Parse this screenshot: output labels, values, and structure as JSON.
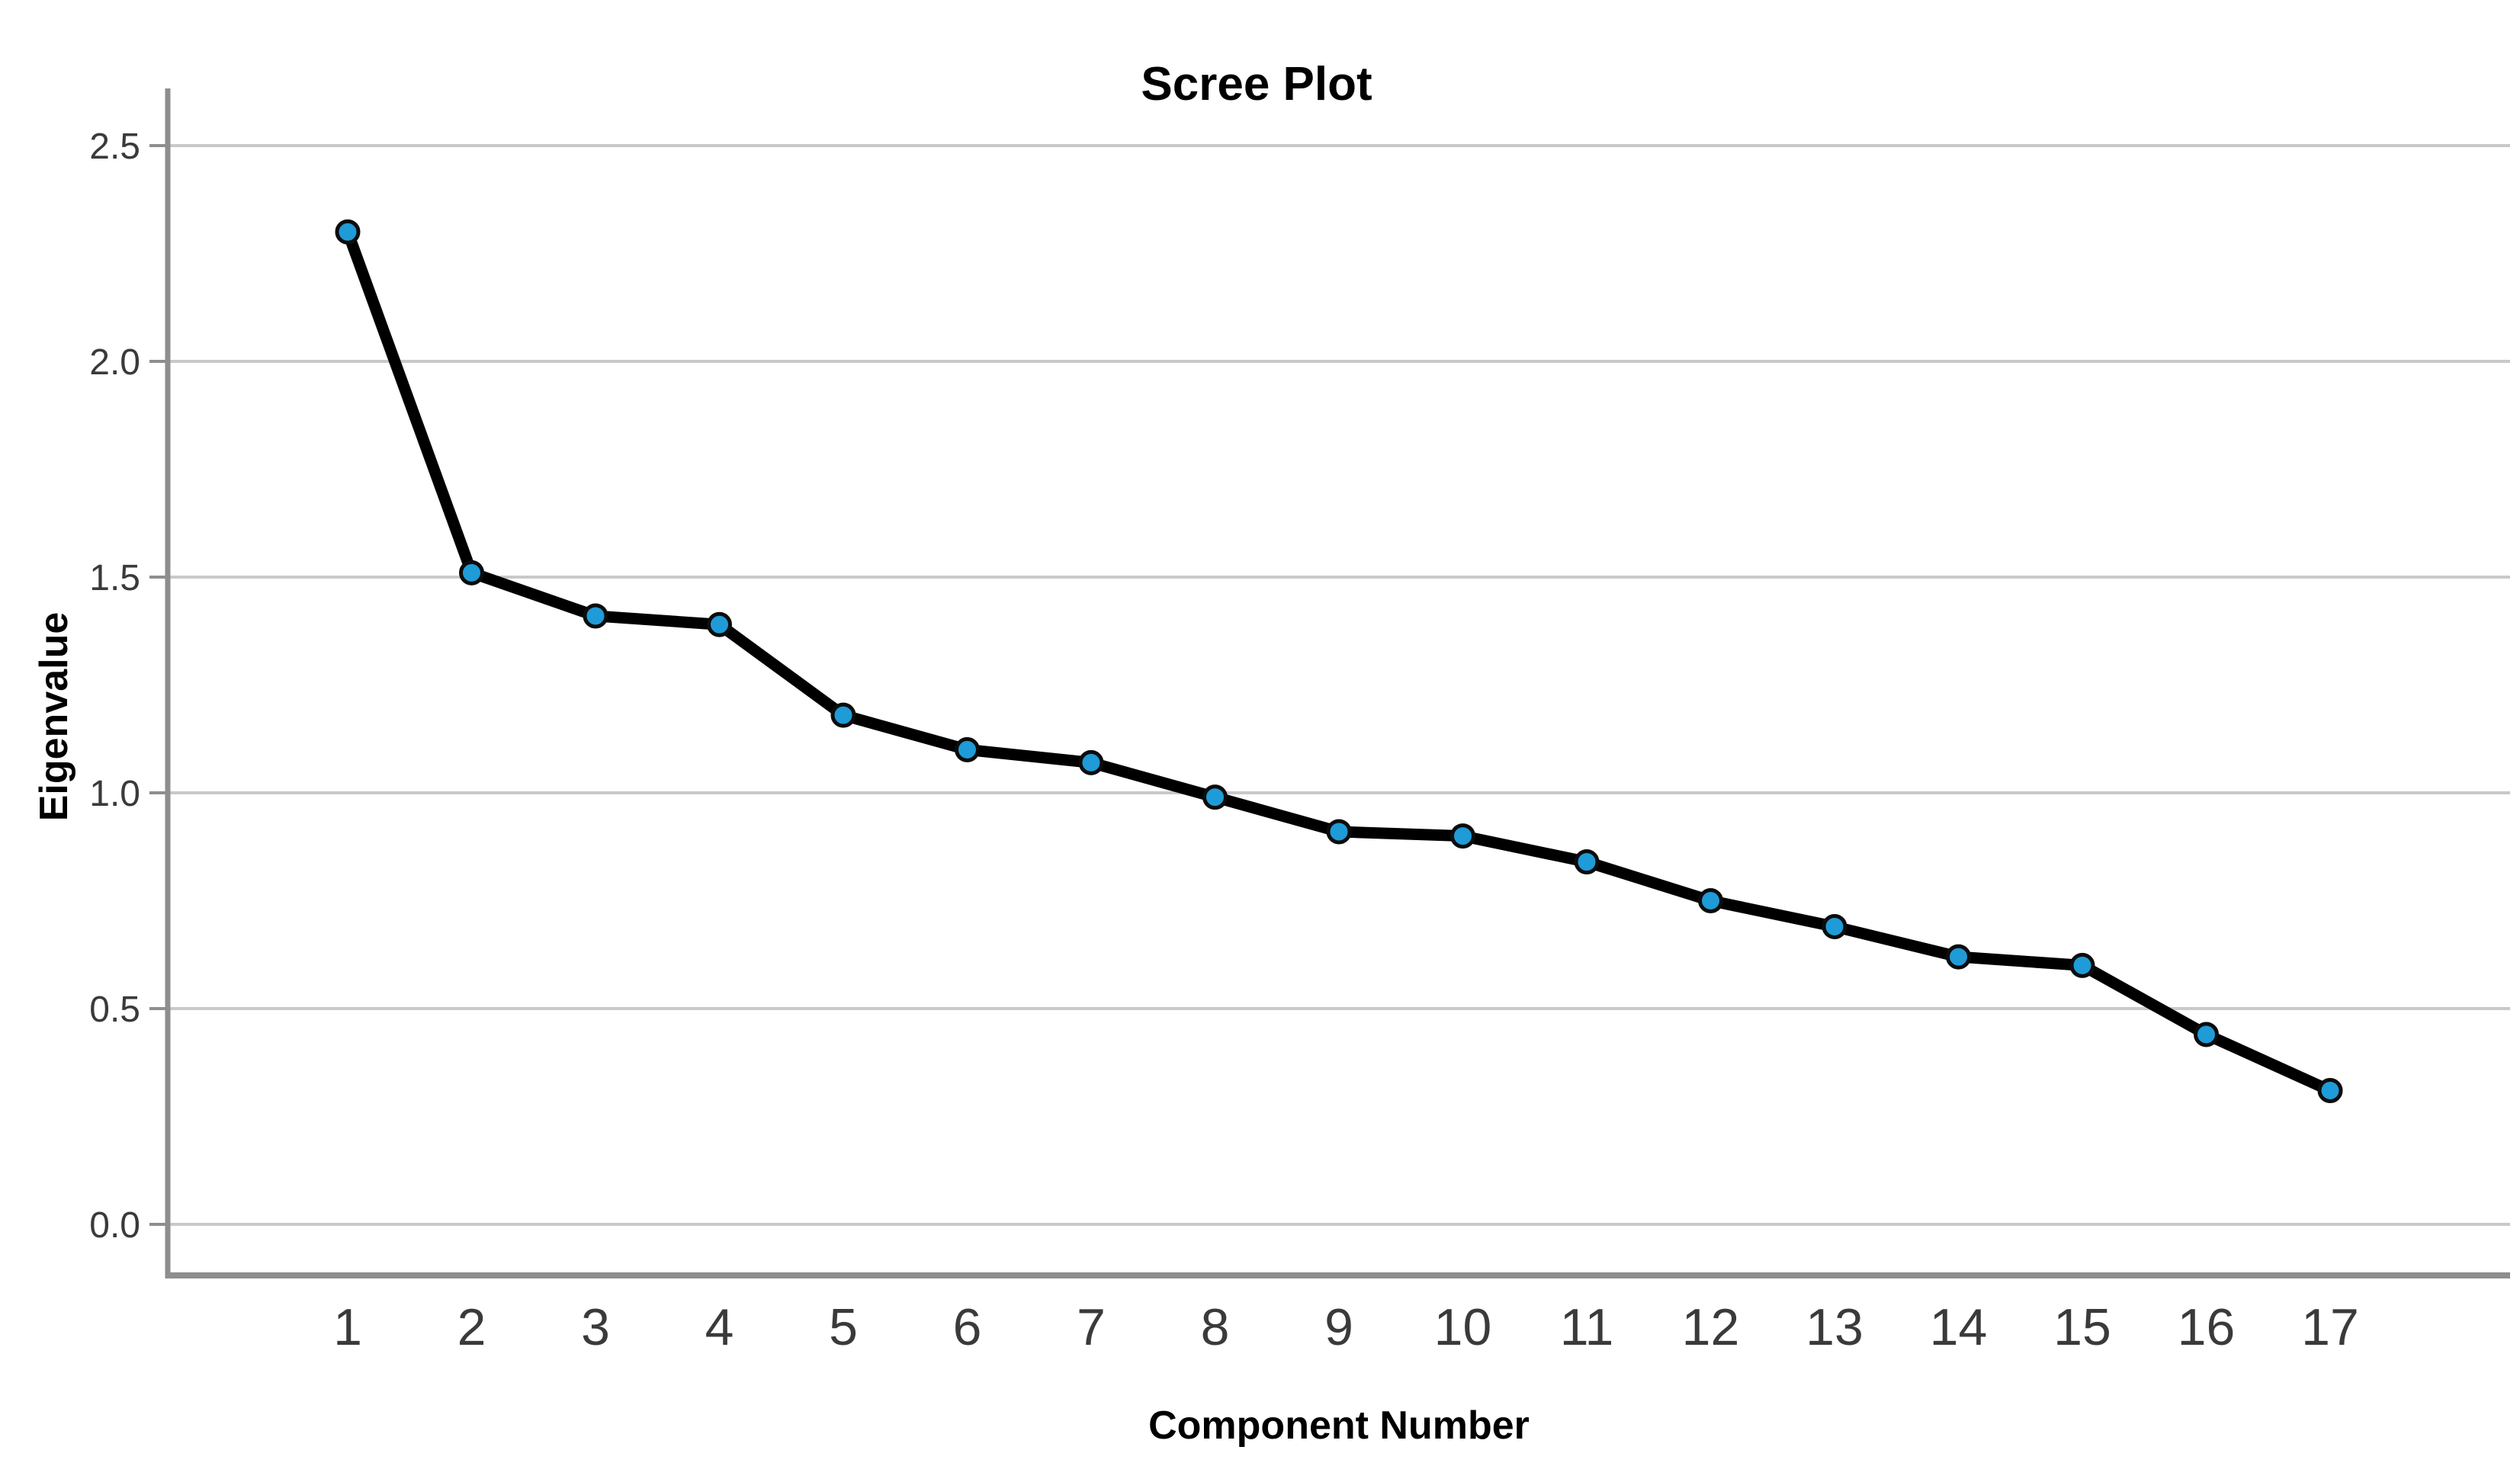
{
  "chart_data": {
    "type": "line",
    "title": "Scree Plot",
    "xlabel": "Component Number",
    "ylabel": "Eigenvalue",
    "categories": [
      "1",
      "2",
      "3",
      "4",
      "5",
      "6",
      "7",
      "8",
      "9",
      "10",
      "11",
      "12",
      "13",
      "14",
      "15",
      "16",
      "17"
    ],
    "series": [
      {
        "name": "Eigenvalue",
        "values": [
          2.3,
          1.51,
          1.41,
          1.39,
          1.18,
          1.1,
          1.07,
          0.99,
          0.91,
          0.9,
          0.84,
          0.75,
          0.69,
          0.62,
          0.6,
          0.44,
          0.31
        ]
      }
    ],
    "y_ticks": [
      "0.0",
      "0.5",
      "1.0",
      "1.5",
      "2.0",
      "2.5"
    ],
    "ylim": [
      -0.12,
      2.63
    ],
    "grid": true,
    "legend_position": "none",
    "marker_shape": "circle",
    "colors": {
      "marker_fill": "#1F9BD7",
      "marker_stroke": "#0c0c0c",
      "line": "#000000",
      "grid": "#c9c9c9",
      "axis": "#8e8e8e",
      "tick_text": "#3a3a3a",
      "title_text": "#000000",
      "background": "#ffffff"
    }
  }
}
